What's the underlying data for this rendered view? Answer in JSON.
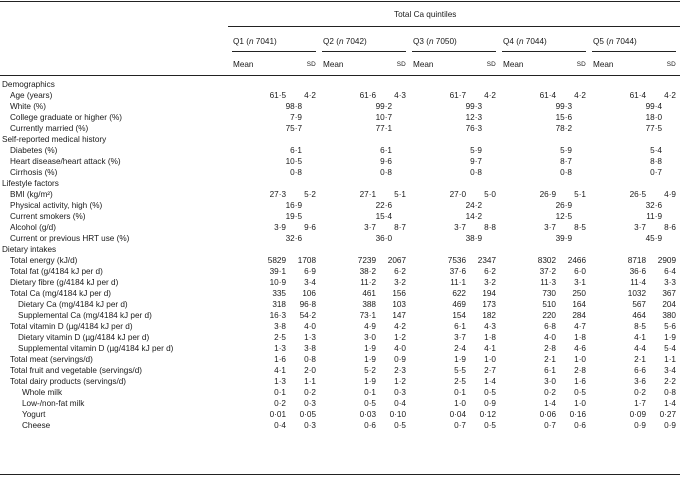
{
  "table": {
    "spanner": "Total Ca quintiles",
    "quintiles": [
      {
        "q": "Q1",
        "n_label": "n",
        "n_value": "7041"
      },
      {
        "q": "Q2",
        "n_label": "n",
        "n_value": "7042"
      },
      {
        "q": "Q3",
        "n_label": "n",
        "n_value": "7050"
      },
      {
        "q": "Q4",
        "n_label": "n",
        "n_value": "7044"
      },
      {
        "q": "Q5",
        "n_label": "n",
        "n_value": "7044"
      }
    ],
    "mean_label": "Mean",
    "sd_label": "SD",
    "rows": [
      {
        "kind": "section",
        "label": "Demographics"
      },
      {
        "kind": "data",
        "indent": 1,
        "label": "Age (years)",
        "values": [
          [
            "61·5",
            "4·2"
          ],
          [
            "61·6",
            "4·3"
          ],
          [
            "61·7",
            "4·2"
          ],
          [
            "61·4",
            "4·2"
          ],
          [
            "61·4",
            "4·2"
          ]
        ]
      },
      {
        "kind": "data",
        "indent": 1,
        "label": "White (%)",
        "values": [
          [
            "98·8"
          ],
          [
            "99·2"
          ],
          [
            "99·3"
          ],
          [
            "99·3"
          ],
          [
            "99·4"
          ]
        ]
      },
      {
        "kind": "data",
        "indent": 1,
        "label": "College graduate or higher (%)",
        "values": [
          [
            "7·9"
          ],
          [
            "10·7"
          ],
          [
            "12·3"
          ],
          [
            "15·6"
          ],
          [
            "18·0"
          ]
        ]
      },
      {
        "kind": "data",
        "indent": 1,
        "label": "Currently married (%)",
        "values": [
          [
            "75·7"
          ],
          [
            "77·1"
          ],
          [
            "76·3"
          ],
          [
            "78·2"
          ],
          [
            "77·5"
          ]
        ]
      },
      {
        "kind": "section",
        "label": "Self-reported medical history"
      },
      {
        "kind": "data",
        "indent": 1,
        "label": "Diabetes (%)",
        "values": [
          [
            "6·1"
          ],
          [
            "6·1"
          ],
          [
            "5·9"
          ],
          [
            "5·9"
          ],
          [
            "5·4"
          ]
        ]
      },
      {
        "kind": "data",
        "indent": 1,
        "label": "Heart disease/heart attack (%)",
        "values": [
          [
            "10·5"
          ],
          [
            "9·6"
          ],
          [
            "9·7"
          ],
          [
            "8·7"
          ],
          [
            "8·8"
          ]
        ]
      },
      {
        "kind": "data",
        "indent": 1,
        "label": "Cirrhosis (%)",
        "values": [
          [
            "0·8"
          ],
          [
            "0·8"
          ],
          [
            "0·8"
          ],
          [
            "0·8"
          ],
          [
            "0·7"
          ]
        ]
      },
      {
        "kind": "section",
        "label": "Lifestyle factors"
      },
      {
        "kind": "data",
        "indent": 1,
        "label": "BMI (kg/m²)",
        "values": [
          [
            "27·3",
            "5·2"
          ],
          [
            "27·1",
            "5·1"
          ],
          [
            "27·0",
            "5·0"
          ],
          [
            "26·9",
            "5·1"
          ],
          [
            "26·5",
            "4·9"
          ]
        ]
      },
      {
        "kind": "data",
        "indent": 1,
        "label": "Physical activity, high (%)",
        "values": [
          [
            "16·9"
          ],
          [
            "22·6"
          ],
          [
            "24·2"
          ],
          [
            "26·9"
          ],
          [
            "32·6"
          ]
        ]
      },
      {
        "kind": "data",
        "indent": 1,
        "label": "Current smokers (%)",
        "values": [
          [
            "19·5"
          ],
          [
            "15·4"
          ],
          [
            "14·2"
          ],
          [
            "12·5"
          ],
          [
            "11·9"
          ]
        ]
      },
      {
        "kind": "data",
        "indent": 1,
        "label": "Alcohol (g/d)",
        "values": [
          [
            "3·9",
            "9·6"
          ],
          [
            "3·7",
            "8·7"
          ],
          [
            "3·7",
            "8·8"
          ],
          [
            "3·7",
            "8·5"
          ],
          [
            "3·7",
            "8·6"
          ]
        ]
      },
      {
        "kind": "data",
        "indent": 1,
        "label": "Current or previous HRT use (%)",
        "values": [
          [
            "32·6"
          ],
          [
            "36·0"
          ],
          [
            "38·9"
          ],
          [
            "39·9"
          ],
          [
            "45·9"
          ]
        ]
      },
      {
        "kind": "section",
        "label": "Dietary intakes"
      },
      {
        "kind": "data",
        "indent": 1,
        "label": "Total energy (kJ/d)",
        "values": [
          [
            "5829",
            "1708"
          ],
          [
            "7239",
            "2067"
          ],
          [
            "7536",
            "2347"
          ],
          [
            "8302",
            "2466"
          ],
          [
            "8718",
            "2909"
          ]
        ]
      },
      {
        "kind": "data",
        "indent": 1,
        "label": "Total fat (g/4184 kJ per d)",
        "values": [
          [
            "39·1",
            "6·9"
          ],
          [
            "38·2",
            "6·2"
          ],
          [
            "37·6",
            "6·2"
          ],
          [
            "37·2",
            "6·0"
          ],
          [
            "36·6",
            "6·4"
          ]
        ]
      },
      {
        "kind": "data",
        "indent": 1,
        "label": "Dietary fibre (g/4184 kJ per d)",
        "values": [
          [
            "10·9",
            "3·4"
          ],
          [
            "11·2",
            "3·2"
          ],
          [
            "11·1",
            "3·2"
          ],
          [
            "11·3",
            "3·1"
          ],
          [
            "11·4",
            "3·3"
          ]
        ]
      },
      {
        "kind": "data",
        "indent": 1,
        "label": "Total Ca (mg/4184 kJ per d)",
        "values": [
          [
            "335",
            "106"
          ],
          [
            "461",
            "156"
          ],
          [
            "622",
            "194"
          ],
          [
            "730",
            "250"
          ],
          [
            "1032",
            "367"
          ]
        ]
      },
      {
        "kind": "data",
        "indent": 2,
        "label": "Dietary Ca (mg/4184 kJ per d)",
        "values": [
          [
            "318",
            "96·8"
          ],
          [
            "388",
            "103"
          ],
          [
            "469",
            "173"
          ],
          [
            "510",
            "164"
          ],
          [
            "567",
            "204"
          ]
        ]
      },
      {
        "kind": "data",
        "indent": 2,
        "label": "Supplemental Ca (mg/4184 kJ per d)",
        "values": [
          [
            "16·3",
            "54·2"
          ],
          [
            "73·1",
            "147"
          ],
          [
            "154",
            "182"
          ],
          [
            "220",
            "284"
          ],
          [
            "464",
            "380"
          ]
        ]
      },
      {
        "kind": "data",
        "indent": 1,
        "label": "Total vitamin D (µg/4184 kJ per d)",
        "values": [
          [
            "3·8",
            "4·0"
          ],
          [
            "4·9",
            "4·2"
          ],
          [
            "6·1",
            "4·3"
          ],
          [
            "6·8",
            "4·7"
          ],
          [
            "8·5",
            "5·6"
          ]
        ]
      },
      {
        "kind": "data",
        "indent": 2,
        "label": "Dietary vitamin D (µg/4184 kJ per d)",
        "values": [
          [
            "2·5",
            "1·3"
          ],
          [
            "3·0",
            "1·2"
          ],
          [
            "3·7",
            "1·8"
          ],
          [
            "4·0",
            "1·8"
          ],
          [
            "4·1",
            "1·9"
          ]
        ]
      },
      {
        "kind": "data",
        "indent": 2,
        "label": "Supplemental vitamin D (µg/4184 kJ per d)",
        "values": [
          [
            "1·3",
            "3·8"
          ],
          [
            "1·9",
            "4·0"
          ],
          [
            "2·4",
            "4·1"
          ],
          [
            "2·8",
            "4·6"
          ],
          [
            "4·4",
            "5·4"
          ]
        ]
      },
      {
        "kind": "data",
        "indent": 1,
        "label": "Total meat (servings/d)",
        "values": [
          [
            "1·6",
            "0·8"
          ],
          [
            "1·9",
            "0·9"
          ],
          [
            "1·9",
            "1·0"
          ],
          [
            "2·1",
            "1·0"
          ],
          [
            "2·1",
            "1·1"
          ]
        ]
      },
      {
        "kind": "data",
        "indent": 1,
        "label": "Total fruit and vegetable (servings/d)",
        "values": [
          [
            "4·1",
            "2·0"
          ],
          [
            "5·2",
            "2·3"
          ],
          [
            "5·5",
            "2·7"
          ],
          [
            "6·1",
            "2·8"
          ],
          [
            "6·6",
            "3·4"
          ]
        ]
      },
      {
        "kind": "data",
        "indent": 1,
        "label": "Total dairy products (servings/d)",
        "values": [
          [
            "1·3",
            "1·1"
          ],
          [
            "1·9",
            "1·2"
          ],
          [
            "2·5",
            "1·4"
          ],
          [
            "3·0",
            "1·6"
          ],
          [
            "3·6",
            "2·2"
          ]
        ]
      },
      {
        "kind": "data",
        "indent": 3,
        "label": "Whole milk",
        "values": [
          [
            "0·1",
            "0·2"
          ],
          [
            "0·1",
            "0·3"
          ],
          [
            "0·1",
            "0·5"
          ],
          [
            "0·2",
            "0·5"
          ],
          [
            "0·2",
            "0·8"
          ]
        ]
      },
      {
        "kind": "data",
        "indent": 3,
        "label": "Low-/non-fat milk",
        "values": [
          [
            "0·2",
            "0·3"
          ],
          [
            "0·5",
            "0·4"
          ],
          [
            "1·0",
            "0·9"
          ],
          [
            "1·4",
            "1·0"
          ],
          [
            "1·7",
            "1·4"
          ]
        ]
      },
      {
        "kind": "data",
        "indent": 3,
        "label": "Yogurt",
        "values": [
          [
            "0·01",
            "0·05"
          ],
          [
            "0·03",
            "0·10"
          ],
          [
            "0·04",
            "0·12"
          ],
          [
            "0·06",
            "0·16"
          ],
          [
            "0·09",
            "0·27"
          ]
        ]
      },
      {
        "kind": "data",
        "indent": 3,
        "label": "Cheese",
        "values": [
          [
            "0·4",
            "0·3"
          ],
          [
            "0·6",
            "0·5"
          ],
          [
            "0·7",
            "0·5"
          ],
          [
            "0·7",
            "0·6"
          ],
          [
            "0·9",
            "0·9"
          ]
        ]
      }
    ]
  }
}
